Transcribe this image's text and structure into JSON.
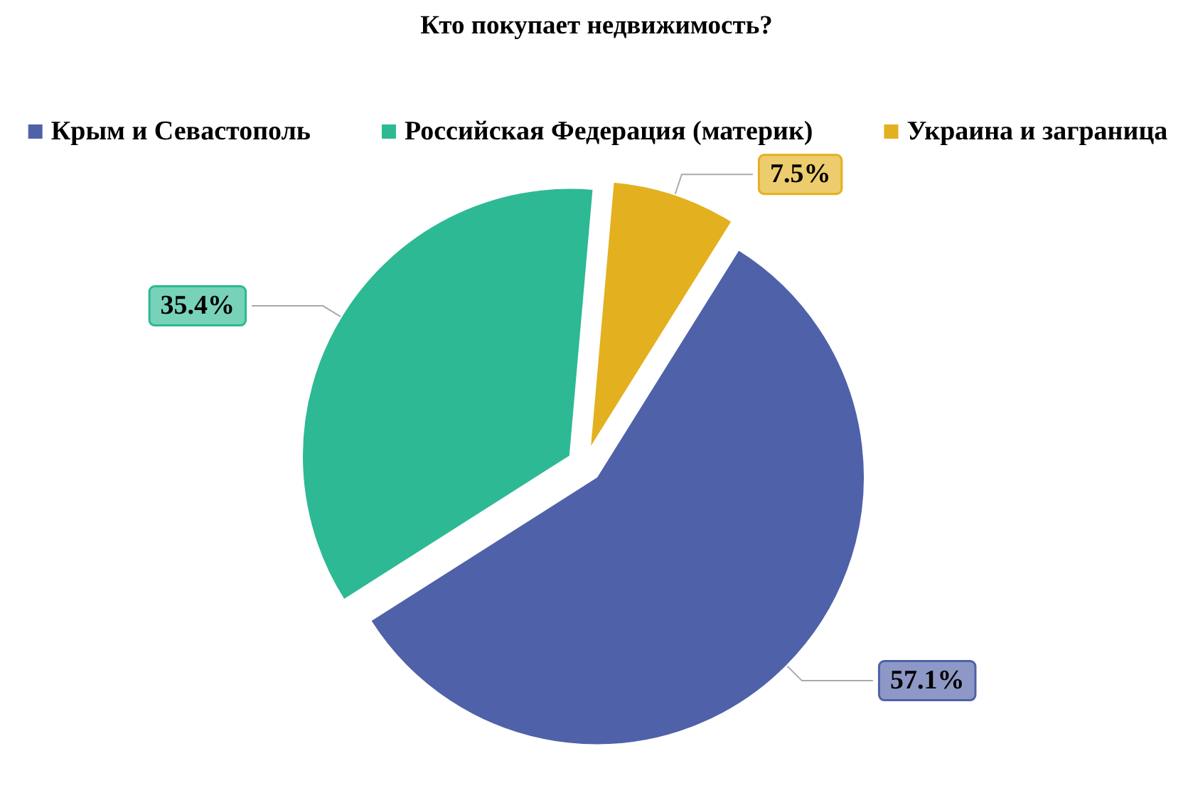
{
  "chart_data": {
    "type": "pie",
    "title": "Кто покупает недвижимость?",
    "categories": [
      "Крым и Севастополь",
      "Российская Федерация (материк)",
      "Украина и заграница"
    ],
    "values": [
      57.1,
      35.4,
      7.5
    ],
    "colors": [
      "#4f61a8",
      "#2db994",
      "#e3b020"
    ],
    "value_labels": [
      "57.1%",
      "35.4%",
      "7.5%"
    ],
    "legend": "top"
  }
}
